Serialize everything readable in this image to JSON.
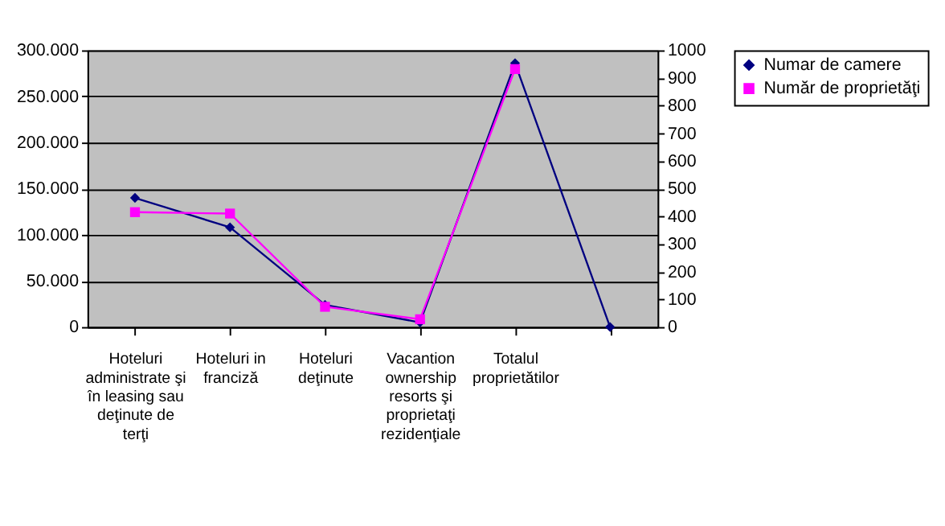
{
  "chart_data": {
    "type": "line",
    "categories": [
      "Hoteluri administrate şi în leasing sau deţinute de terţi",
      "Hoteluri in franciză",
      "Hoteluri deţinute",
      "Vacantion ownership resorts şi proprietaţi rezidenţiale",
      "Totalul proprietătilor",
      null
    ],
    "series": [
      {
        "name": "Numar de camere",
        "color": "#000080",
        "marker": "diamond",
        "values": [
          140000,
          108000,
          24000,
          5000,
          286000,
          0
        ]
      },
      {
        "name": "Număr de proprietăţi",
        "color": "#ff00ff",
        "marker": "square",
        "axis": "y2",
        "values": [
          415,
          410,
          73,
          28,
          932,
          null
        ]
      }
    ],
    "ylim": [
      0,
      300000
    ],
    "yticks": [
      0,
      {
        "value": 50000,
        "label": "50.000"
      },
      {
        "value": 100000,
        "label": "100.000"
      },
      {
        "value": 150000,
        "label": "150.000"
      },
      {
        "value": 200000,
        "label": "200.000"
      },
      {
        "value": 250000,
        "label": "250.000"
      },
      {
        "value": 300000,
        "label": "300.000"
      }
    ],
    "y2lim": [
      0,
      1000
    ],
    "y2ticks": [
      0,
      100,
      200,
      300,
      400,
      500,
      600,
      700,
      800,
      900,
      1000
    ],
    "grid": "y",
    "legend": "right",
    "line_style": "solid"
  }
}
